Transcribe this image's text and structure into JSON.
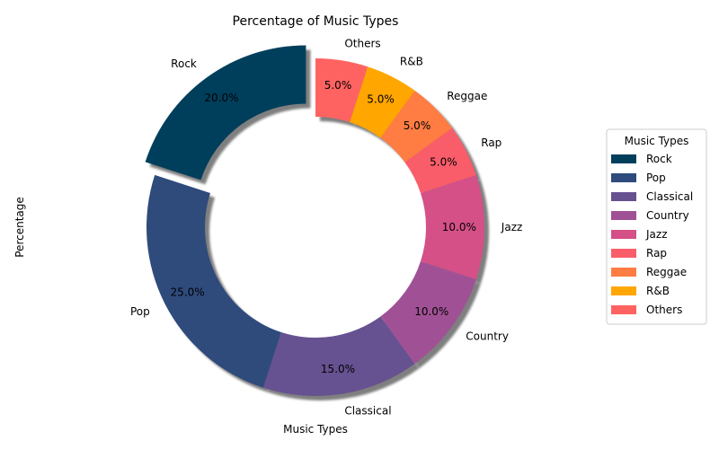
{
  "chart_data": {
    "type": "pie",
    "variant": "donut",
    "title": "Percentage of Music Types",
    "xlabel": "Music Types",
    "ylabel": "Percentage",
    "slices": [
      {
        "label": "Rock",
        "value": 20.0,
        "pct_label": "20.0%",
        "color": "#003f5c",
        "exploded": true
      },
      {
        "label": "Pop",
        "value": 25.0,
        "pct_label": "25.0%",
        "color": "#2f4b7c",
        "exploded": false
      },
      {
        "label": "Classical",
        "value": 15.0,
        "pct_label": "15.0%",
        "color": "#665191",
        "exploded": false
      },
      {
        "label": "Country",
        "value": 10.0,
        "pct_label": "10.0%",
        "color": "#a05195",
        "exploded": false
      },
      {
        "label": "Jazz",
        "value": 10.0,
        "pct_label": "10.0%",
        "color": "#d45087",
        "exploded": false
      },
      {
        "label": "Rap",
        "value": 5.0,
        "pct_label": "5.0%",
        "color": "#f95d6a",
        "exploded": false
      },
      {
        "label": "Reggae",
        "value": 5.0,
        "pct_label": "5.0%",
        "color": "#ff7c43",
        "exploded": false
      },
      {
        "label": "R&B",
        "value": 5.0,
        "pct_label": "5.0%",
        "color": "#ffa600",
        "exploded": false
      },
      {
        "label": "Others",
        "value": 5.0,
        "pct_label": "5.0%",
        "color": "#ff6361",
        "exploded": false
      }
    ],
    "legend": {
      "title": "Music Types",
      "placement": "right",
      "entries": [
        "Rock",
        "Pop",
        "Classical",
        "Country",
        "Jazz",
        "Rap",
        "Reggae",
        "R&B",
        "Others"
      ]
    },
    "start_angle_deg": 90,
    "direction": "counterclockwise",
    "shadow": true
  }
}
